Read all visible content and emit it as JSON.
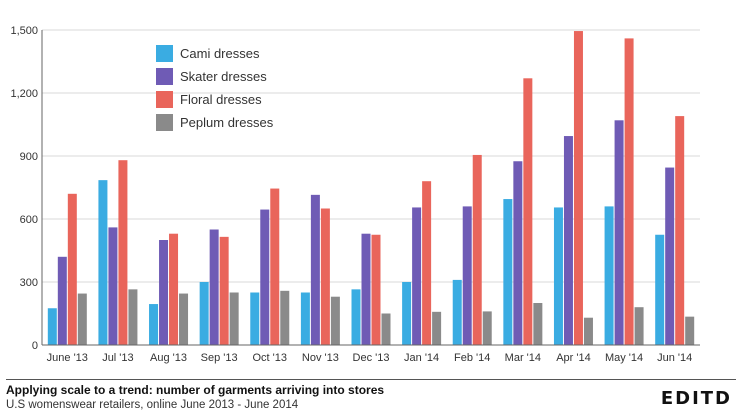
{
  "chart_data": {
    "type": "bar",
    "categories": [
      "June '13",
      "Jul '13",
      "Aug '13",
      "Sep '13",
      "Oct '13",
      "Nov '13",
      "Dec '13",
      "Jan '14",
      "Feb '14",
      "Mar '14",
      "Apr '14",
      "May '14",
      "Jun '14"
    ],
    "series": [
      {
        "name": "Cami dresses",
        "color": "#3aace2",
        "values": [
          175,
          785,
          195,
          300,
          250,
          250,
          265,
          300,
          310,
          695,
          655,
          660,
          525
        ]
      },
      {
        "name": "Skater dresses",
        "color": "#6f5bb5",
        "values": [
          420,
          560,
          500,
          550,
          645,
          715,
          530,
          655,
          660,
          875,
          995,
          1070,
          845
        ]
      },
      {
        "name": "Floral dresses",
        "color": "#e9655b",
        "values": [
          720,
          880,
          530,
          515,
          745,
          650,
          525,
          780,
          905,
          1270,
          1495,
          1460,
          1090
        ]
      },
      {
        "name": "Peplum dresses",
        "color": "#8a8a8a",
        "values": [
          245,
          265,
          245,
          250,
          258,
          230,
          150,
          158,
          160,
          200,
          130,
          180,
          135
        ]
      }
    ],
    "yticks": [
      "0",
      "300",
      "600",
      "900",
      "1,200",
      "1,500"
    ],
    "ylim": [
      0,
      1500
    ],
    "grid": true,
    "legend_position": "top-left"
  },
  "caption": {
    "title": "Applying scale to a trend: number of garments arriving into stores",
    "subtitle": "U.S womenswear retailers, online June 2013 - June 2014"
  },
  "brand": "EDITD"
}
